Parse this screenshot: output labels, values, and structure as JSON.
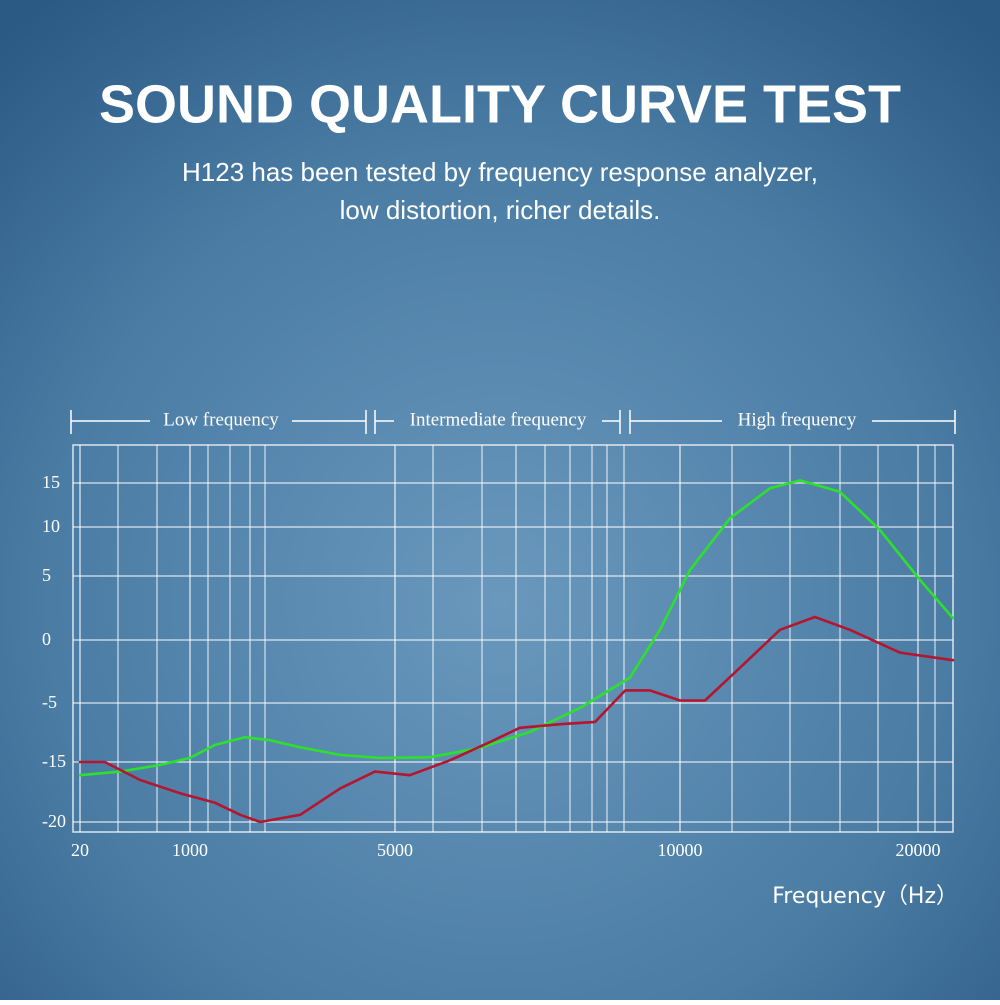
{
  "chart_data": {
    "type": "line",
    "title": "SOUND QUALITY CURVE TEST",
    "subtitle": [
      "H123 has been tested by frequency response analyzer,",
      "low distortion, richer details."
    ],
    "annotations": [
      "Low frequency",
      "Intermediate frequency",
      "High frequency"
    ],
    "x_label": "Frequency（Hz）",
    "xticks": [
      20,
      1000,
      5000,
      10000,
      20000
    ],
    "yticks": [
      15,
      10,
      5,
      0,
      -5,
      -15,
      -20
    ],
    "grid": true,
    "series": [
      {
        "color": "#2ee02e",
        "x": [
          20,
          380,
          730,
          1000,
          1490,
          2070,
          2560,
          3150,
          3930,
          4710,
          5610,
          6490,
          7370,
          8250,
          9120,
          9650,
          10420,
          12100,
          13780,
          15040,
          16720,
          18400,
          20080,
          21470
        ],
        "values": [
          -16.1,
          -15.8,
          -15.25,
          -14.3,
          -12.1,
          -10.8,
          -11.3,
          -12.5,
          -13.8,
          -14.3,
          -14.2,
          -12.6,
          -9.9,
          -5.8,
          -3.0,
          0.8,
          5.6,
          11.0,
          14.4,
          15.3,
          14.0,
          9.7,
          4.7,
          1.7
        ]
      },
      {
        "color": "#b3162e",
        "x": [
          20,
          240,
          555,
          910,
          1490,
          1980,
          2370,
          3150,
          3930,
          4610,
          5260,
          5970,
          6670,
          7190,
          7900,
          8510,
          9040,
          9470,
          10000,
          11050,
          12520,
          14200,
          15670,
          17140,
          19240,
          21470
        ],
        "values": [
          -15,
          -15,
          -16.5,
          -17.6,
          -18.4,
          -19.4,
          -20,
          -19.4,
          -17.2,
          -15.8,
          -16.1,
          -14.7,
          -11.6,
          -9.2,
          -8.6,
          -8.2,
          -4.0,
          -4.0,
          -4.8,
          -4.8,
          -2.2,
          0.8,
          1.8,
          0.8,
          -1.0,
          -1.6
        ]
      }
    ]
  }
}
